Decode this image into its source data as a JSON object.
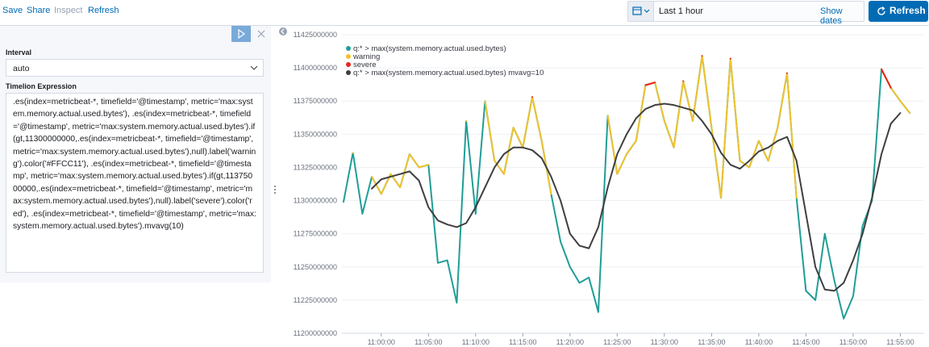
{
  "toolbar": {
    "links": [
      "Save",
      "Share",
      "Inspect",
      "Refresh"
    ]
  },
  "time_picker": {
    "range": "Last 1 hour",
    "show_dates": "Show dates",
    "refresh": "Refresh"
  },
  "editor": {
    "interval_label": "Interval",
    "interval": "auto",
    "expression_label": "Timelion Expression",
    "expression": ".es(index=metricbeat-*, timefield='@timestamp', metric='max:system.memory.actual.used.bytes'), .es(index=metricbeat-*, timefield='@timestamp', metric='max:system.memory.actual.used.bytes').if(gt,11300000000,.es(index=metricbeat-*, timefield='@timestamp', metric='max:system.memory.actual.used.bytes'),null).label('warning').color('#FFCC11'), .es(index=metricbeat-*, timefield='@timestamp', metric='max:system.memory.actual.used.bytes').if(gt,11375000000,.es(index=metricbeat-*, timefield='@timestamp', metric='max:system.memory.actual.used.bytes'),null).label('severe').color('red'), .es(index=metricbeat-*, timefield='@timestamp', metric='max:system.memory.actual.used.bytes').mvavg(10)"
  },
  "chart_data": {
    "type": "line",
    "x": [
      "10:56",
      "10:57",
      "10:58",
      "10:59",
      "11:00",
      "11:01",
      "11:02",
      "11:03",
      "11:04",
      "11:05",
      "11:06",
      "11:07",
      "11:08",
      "11:09",
      "11:10",
      "11:11",
      "11:12",
      "11:13",
      "11:14",
      "11:15",
      "11:16",
      "11:17",
      "11:18",
      "11:19",
      "11:20",
      "11:21",
      "11:22",
      "11:23",
      "11:24",
      "11:25",
      "11:26",
      "11:27",
      "11:28",
      "11:29",
      "11:30",
      "11:31",
      "11:32",
      "11:33",
      "11:34",
      "11:35",
      "11:36",
      "11:37",
      "11:38",
      "11:39",
      "11:40",
      "11:41",
      "11:42",
      "11:43",
      "11:44",
      "11:45",
      "11:46",
      "11:47",
      "11:48",
      "11:49",
      "11:50",
      "11:51",
      "11:52",
      "11:53",
      "11:54",
      "11:55",
      "11:56"
    ],
    "series": [
      {
        "name": "q:* > max(system.memory.actual.used.bytes)",
        "color": "#1f9e96",
        "values": [
          11299000000,
          11336000000,
          11290000000,
          11318000000,
          11305000000,
          11320000000,
          11310000000,
          11335000000,
          11325000000,
          11327000000,
          11253000000,
          11255000000,
          11223000000,
          11360000000,
          11290000000,
          11375000000,
          11330000000,
          11320000000,
          11355000000,
          11340000000,
          11378000000,
          11345000000,
          11305000000,
          11269000000,
          11250000000,
          11238000000,
          11242000000,
          11216000000,
          11364000000,
          11320000000,
          11335000000,
          11345000000,
          11387000000,
          11389000000,
          11360000000,
          11340000000,
          11390000000,
          11360000000,
          11409000000,
          11355000000,
          11302000000,
          11407000000,
          11330000000,
          11325000000,
          11345000000,
          11330000000,
          11355000000,
          11396000000,
          11302000000,
          11232000000,
          11225000000,
          11275000000,
          11240000000,
          11211000000,
          11228000000,
          11281000000,
          11300000000,
          11399000000,
          11385000000,
          11375000000,
          11366000000
        ]
      },
      {
        "name": "warning",
        "color": "#f0c22e",
        "values": [
          null,
          11336000000,
          null,
          11318000000,
          11305000000,
          11320000000,
          11310000000,
          11335000000,
          11325000000,
          11327000000,
          null,
          null,
          null,
          11360000000,
          null,
          11375000000,
          11330000000,
          11320000000,
          11355000000,
          11340000000,
          11378000000,
          11345000000,
          11305000000,
          null,
          null,
          null,
          null,
          null,
          11364000000,
          11320000000,
          11335000000,
          11345000000,
          11387000000,
          11389000000,
          11360000000,
          11340000000,
          11390000000,
          11360000000,
          11409000000,
          11355000000,
          11302000000,
          11407000000,
          11330000000,
          11325000000,
          11345000000,
          11330000000,
          11355000000,
          11396000000,
          11302000000,
          null,
          null,
          null,
          null,
          null,
          null,
          null,
          null,
          11399000000,
          11385000000,
          11375000000,
          11366000000
        ]
      },
      {
        "name": "severe",
        "color": "#e7261b",
        "values": [
          null,
          null,
          null,
          null,
          null,
          null,
          null,
          null,
          null,
          null,
          null,
          null,
          null,
          null,
          null,
          null,
          null,
          null,
          null,
          null,
          11378000000,
          null,
          null,
          null,
          null,
          null,
          null,
          null,
          null,
          null,
          null,
          null,
          11387000000,
          11389000000,
          null,
          null,
          11390000000,
          null,
          11409000000,
          null,
          null,
          11407000000,
          null,
          null,
          null,
          null,
          null,
          11396000000,
          null,
          null,
          null,
          null,
          null,
          null,
          null,
          null,
          null,
          11399000000,
          11385000000,
          null,
          null
        ]
      },
      {
        "name": "q:* > max(system.memory.actual.used.bytes) mvavg=10",
        "color": "#3f3f3f",
        "values": [
          null,
          null,
          null,
          11309000000,
          11316000000,
          11318000000,
          11320000000,
          11322000000,
          11315000000,
          11295000000,
          11285000000,
          11282000000,
          11280000000,
          11283000000,
          11295000000,
          11310000000,
          11325000000,
          11335000000,
          11340000000,
          11340000000,
          11338000000,
          11332000000,
          11318000000,
          11300000000,
          11275000000,
          11266000000,
          11264000000,
          11280000000,
          11310000000,
          11335000000,
          11350000000,
          11362000000,
          11369000000,
          11372000000,
          11373000000,
          11372000000,
          11370000000,
          11368000000,
          11360000000,
          11350000000,
          11336000000,
          11327000000,
          11324000000,
          11330000000,
          11337000000,
          11340000000,
          11345000000,
          11348000000,
          11330000000,
          11290000000,
          11250000000,
          11233000000,
          11232000000,
          11238000000,
          11255000000,
          11275000000,
          11302000000,
          11335000000,
          11358000000,
          11366000000,
          null
        ]
      }
    ],
    "xlim": [
      "10:55:50",
      "11:56:30"
    ],
    "xticks": [
      "11:00:00",
      "11:05:00",
      "11:10:00",
      "11:15:00",
      "11:20:00",
      "11:25:00",
      "11:30:00",
      "11:35:00",
      "11:40:00",
      "11:45:00",
      "11:50:00",
      "11:55:00"
    ],
    "ylim": [
      11200000000,
      11425000000
    ],
    "yticks": [
      11200000000,
      11225000000,
      11250000000,
      11275000000,
      11300000000,
      11325000000,
      11350000000,
      11375000000,
      11400000000,
      11425000000
    ],
    "grid": true,
    "legend": "top-left"
  }
}
